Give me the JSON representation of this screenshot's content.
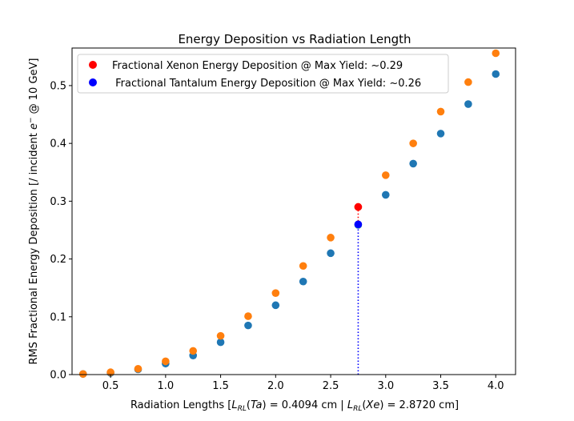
{
  "chart_data": {
    "type": "scatter",
    "title": "Energy Deposition vs Radiation Length",
    "xlabel": "Radiation Lengths [L_RL(Ta) = 0.4094 cm | L_RL(Xe) = 2.8720 cm]",
    "ylabel": "RMS Fractional Energy Deposition [/ incident e⁻ @ 10 GeV]",
    "xlim": [
      0.15,
      4.18
    ],
    "ylim": [
      0,
      0.565
    ],
    "xticks": [
      "0.5",
      "1.0",
      "1.5",
      "2.0",
      "2.5",
      "3.0",
      "3.5",
      "4.0"
    ],
    "yticks": [
      "0.0",
      "0.1",
      "0.2",
      "0.3",
      "0.4",
      "0.5"
    ],
    "grid": false,
    "legend_position": "top-left",
    "x": [
      0.25,
      0.5,
      0.75,
      1.0,
      1.25,
      1.5,
      1.75,
      2.0,
      2.25,
      2.5,
      2.75,
      3.0,
      3.25,
      3.5,
      3.75,
      4.0
    ],
    "series": [
      {
        "color": "#1f77b4",
        "values": [
          0.001,
          0.003,
          0.009,
          0.019,
          0.033,
          0.056,
          0.085,
          0.12,
          0.161,
          0.21,
          0.259,
          0.311,
          0.365,
          0.417,
          0.468,
          0.52
        ]
      },
      {
        "color": "#ff7f0e",
        "values": [
          0.001,
          0.004,
          0.01,
          0.023,
          0.041,
          0.067,
          0.101,
          0.141,
          0.188,
          0.237,
          0.29,
          0.345,
          0.4,
          0.455,
          0.506,
          0.556
        ]
      }
    ],
    "highlights": [
      {
        "name": "Fractional Xenon Energy Deposition @ Max Yield: ~0.29",
        "x": 2.75,
        "y": 0.29,
        "color": "#ff0000"
      },
      {
        "name": " Fractional Tantalum Energy Deposition @ Max Yield: ~0.26",
        "x": 2.75,
        "y": 0.26,
        "color": "#0000ff"
      }
    ],
    "marker_lines": [
      {
        "x": 2.75,
        "from": 0.26,
        "to": 0.29,
        "color": "#ff0000",
        "style": "dotted"
      },
      {
        "x": 2.75,
        "from": 0,
        "to": 0.26,
        "color": "#0000ff",
        "style": "dotted"
      }
    ]
  }
}
